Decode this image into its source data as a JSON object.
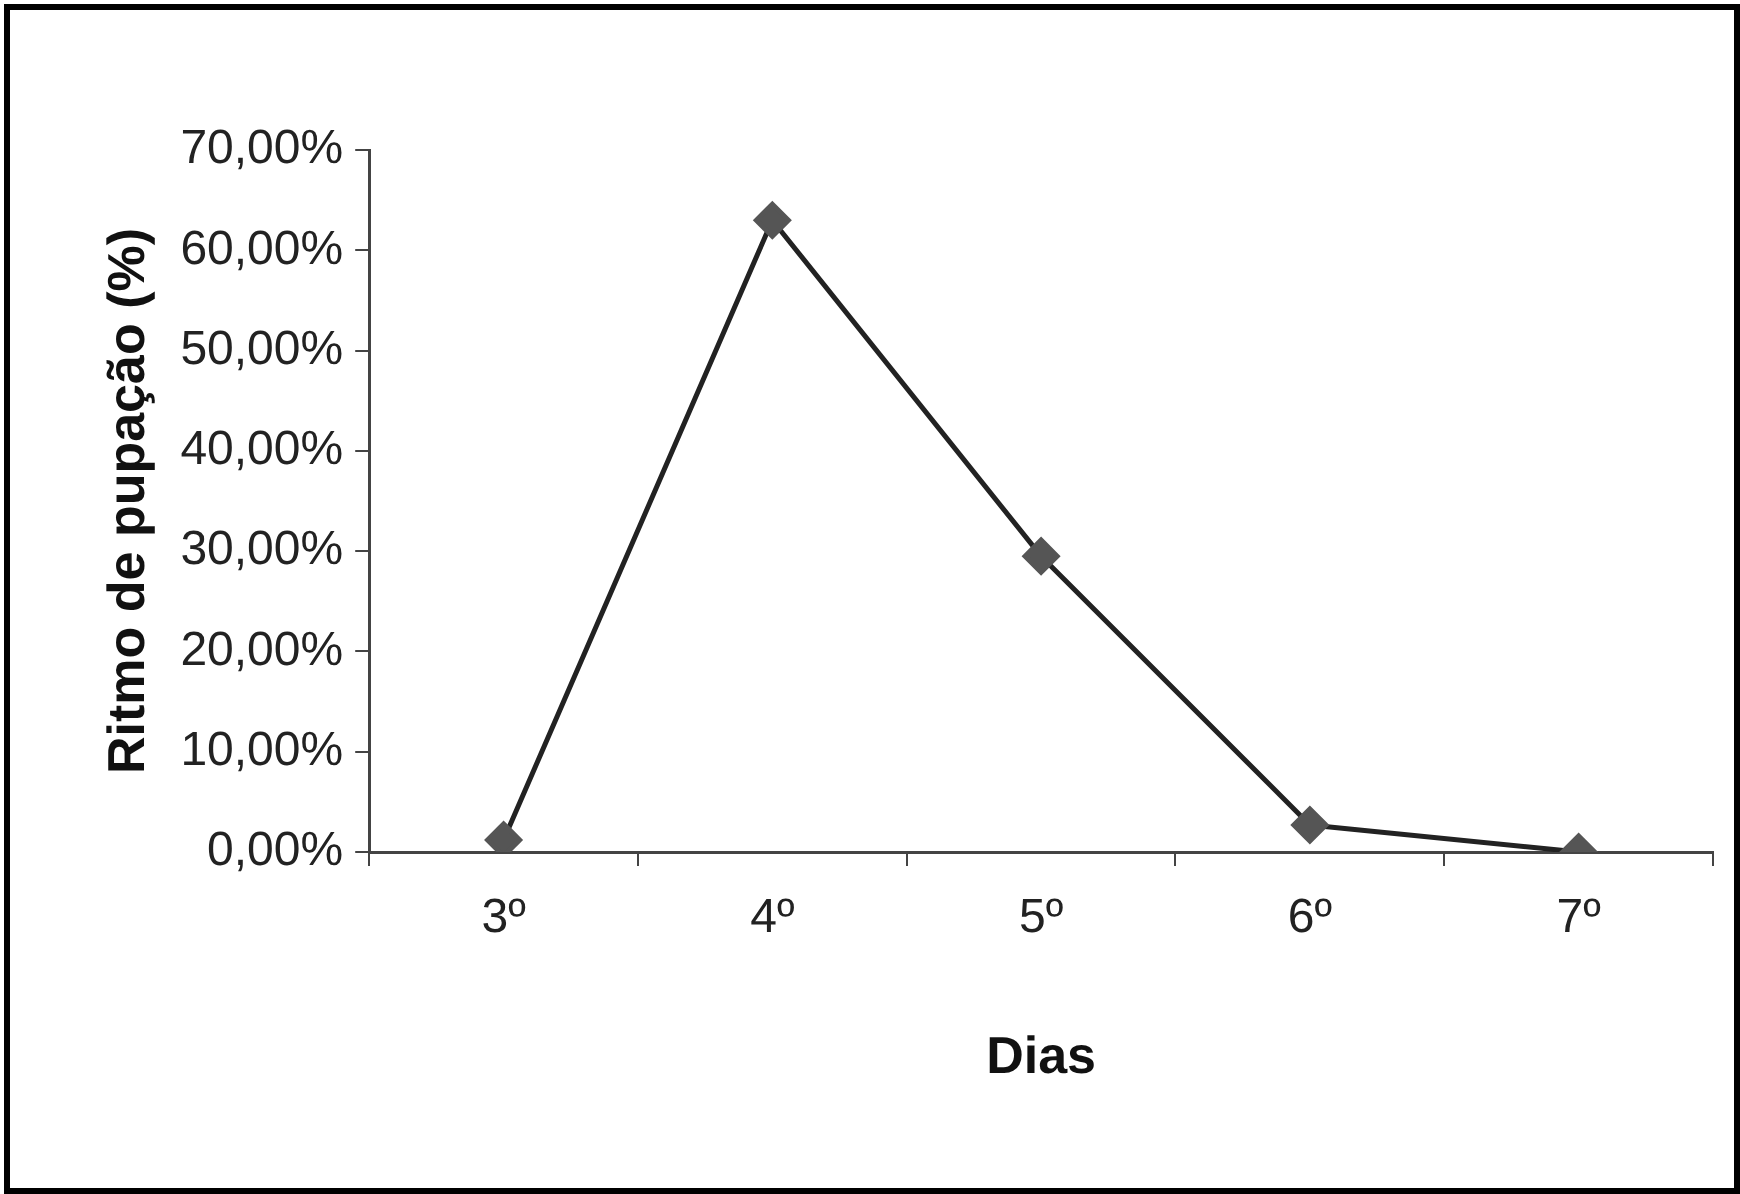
{
  "chart_data": {
    "type": "line",
    "xlabel": "Dias",
    "ylabel": "Ritmo de pupação (%)",
    "categories": [
      "3º",
      "4º",
      "5º",
      "6º",
      "7º"
    ],
    "series": [
      {
        "color": "#555555",
        "values": [
          1.2,
          63,
          29.5,
          2.7,
          0
        ]
      }
    ],
    "ylim": [
      0,
      70
    ],
    "yticks": [
      {
        "value": 0,
        "label": "0,00%"
      },
      {
        "value": 10,
        "label": "10,00%"
      },
      {
        "value": 20,
        "label": "20,00%"
      },
      {
        "value": 30,
        "label": "30,00%"
      },
      {
        "value": 40,
        "label": "40,00%"
      },
      {
        "value": 50,
        "label": "50,00%"
      },
      {
        "value": 60,
        "label": "60,00%"
      },
      {
        "value": 70,
        "label": "70,00%"
      }
    ],
    "grid": false,
    "legend": false,
    "marker": "diamond",
    "line_style": "solid"
  }
}
